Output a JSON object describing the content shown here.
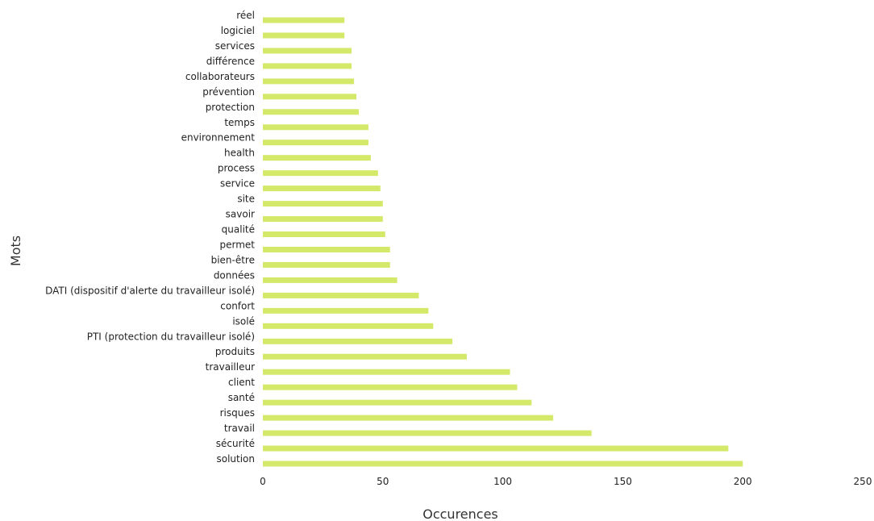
{
  "chart_data": {
    "type": "bar",
    "orientation": "horizontal",
    "title": "",
    "xlabel": "Occurences",
    "ylabel": "Mots",
    "xlim": [
      0,
      250
    ],
    "xticks": [
      "0",
      "50",
      "100",
      "150",
      "200",
      "250"
    ],
    "grid": false,
    "legend": "none",
    "bar_color": "#d4e86a",
    "categories": [
      "solution",
      "sécurité",
      "travail",
      "risques",
      "santé",
      "client",
      "travailleur",
      "produits",
      "PTI (protection du travailleur isolé)",
      "isolé",
      "confort",
      "DATI (dispositif d'alerte du travailleur isolé)",
      "données",
      "bien-être",
      "permet",
      "qualité",
      "savoir",
      "site",
      "service",
      "process",
      "health",
      "environnement",
      "temps",
      "protection",
      "prévention",
      "collaborateurs",
      "différence",
      "services",
      "logiciel",
      "réel"
    ],
    "values": [
      200,
      194,
      137,
      121,
      112,
      106,
      103,
      85,
      79,
      71,
      69,
      65,
      56,
      53,
      53,
      51,
      50,
      50,
      49,
      48,
      45,
      44,
      44,
      40,
      39,
      38,
      37,
      37,
      34,
      34
    ]
  }
}
